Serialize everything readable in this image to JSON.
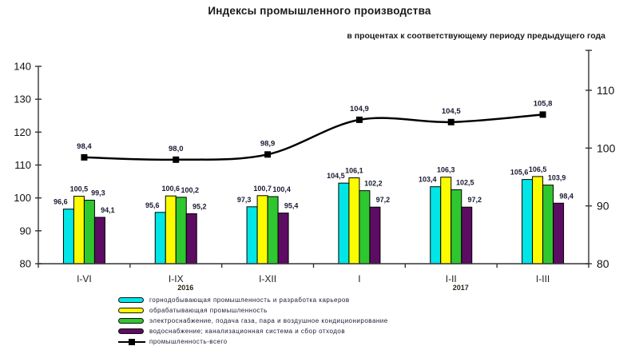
{
  "header": {
    "title": "Индексы промышленного производства",
    "subtitle": "в процентах к соответствующему периоду предыдущего года"
  },
  "chart_data": {
    "type": "bar+line",
    "categories": [
      "I-VI",
      "I-IX",
      "I-XII",
      "I",
      "I-II",
      "I-III"
    ],
    "year_notes": [
      {
        "category_index": 1,
        "label": "2016"
      },
      {
        "category_index": 4,
        "label": "2017"
      }
    ],
    "series": [
      {
        "name": "горнодобывающая промышленность и разработка карьеров",
        "type": "bar",
        "color": "#00E6E6",
        "values": [
          96.6,
          95.6,
          97.3,
          104.5,
          103.4,
          105.6
        ]
      },
      {
        "name": "обрабатывающая промышленность",
        "type": "bar",
        "color": "#FCFC00",
        "values": [
          100.5,
          100.6,
          100.7,
          106.1,
          106.3,
          106.5
        ]
      },
      {
        "name": "электроснабжение, подача газа, пара и воздушное кондиционирование",
        "type": "bar",
        "color": "#2FC72F",
        "values": [
          99.3,
          100.2,
          100.4,
          102.2,
          102.5,
          103.9
        ]
      },
      {
        "name": "водоснабжение; канализационная система и сбор отходов",
        "type": "bar",
        "color": "#5C0C63",
        "values": [
          94.1,
          95.2,
          95.4,
          97.2,
          97.2,
          98.4
        ]
      },
      {
        "name": "промышленность-всего",
        "type": "line",
        "color": "#000000",
        "values": [
          98.4,
          98.0,
          98.9,
          104.9,
          104.5,
          105.8
        ]
      }
    ],
    "left_axis": {
      "min": 80,
      "max": 140,
      "ticks": [
        80,
        90,
        100,
        110,
        120,
        130,
        140
      ]
    },
    "right_axis": {
      "min": 80,
      "max": 110,
      "ticks": [
        80,
        90,
        100,
        110
      ]
    },
    "decimal_separator": ",",
    "legend_position": "bottom-left",
    "grid": false
  }
}
